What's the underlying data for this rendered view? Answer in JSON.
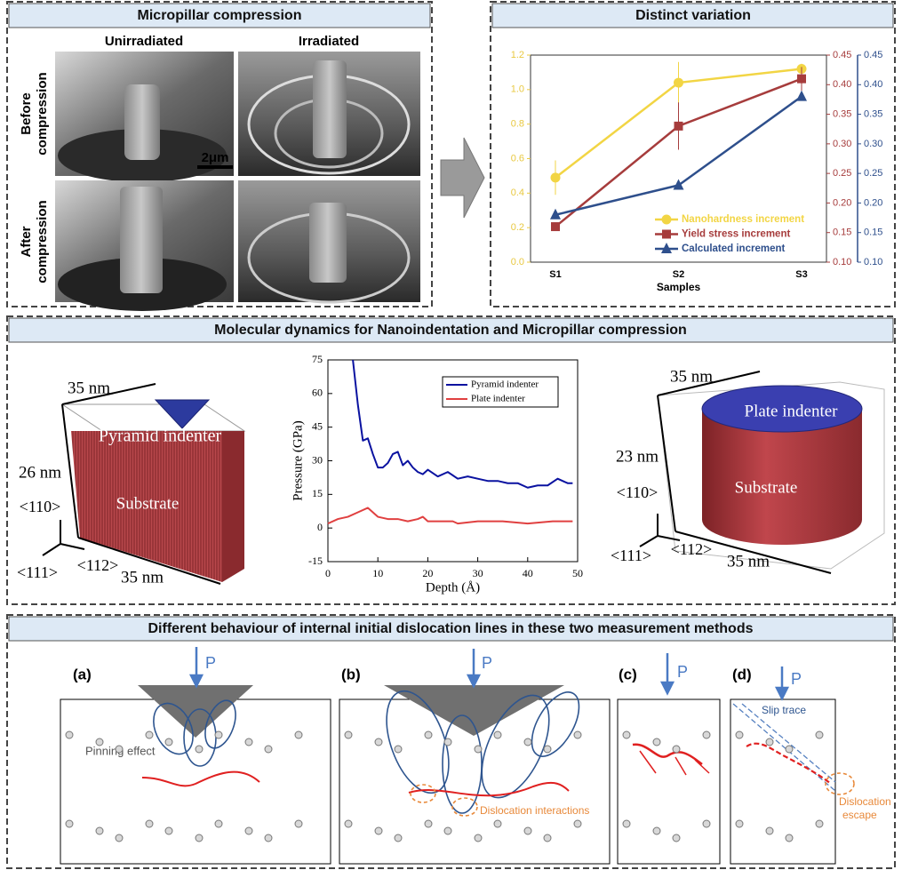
{
  "panels": {
    "micropillar": {
      "title": "Micropillar compression",
      "columns": [
        "Unirradiated",
        "Irradiated"
      ],
      "rows": [
        [
          "Before",
          "compression"
        ],
        [
          "After",
          "compression"
        ]
      ],
      "scale_bar": "2μm"
    },
    "variation": {
      "title": "Distinct variation"
    },
    "md": {
      "title": "Molecular dynamics for Nanoindentation and Micropillar compression",
      "nanoindentation": {
        "width_top": "35 nm",
        "indenter": "Pyramid indenter",
        "height": "26 nm",
        "dir_110": "<110>",
        "substrate": "Substrate",
        "dir_111": "<111>",
        "dir_112": "<112>",
        "width_bottom": "35 nm"
      },
      "pillar": {
        "width_top": "35 nm",
        "indenter": "Plate indenter",
        "height": "23 nm",
        "dir_110": "<110>",
        "substrate": "Substrate",
        "dir_111": "<111>",
        "dir_112": "<112>",
        "width_bottom": "35 nm"
      }
    },
    "dislocation": {
      "title": "Different behaviour of internal initial dislocation lines in these two measurement methods",
      "subpanels": [
        {
          "label": "(a)",
          "load": "P",
          "note": "Pinning effect"
        },
        {
          "label": "(b)",
          "load": "P",
          "note": "Dislocation interactions"
        },
        {
          "label": "(c)",
          "load": "P"
        },
        {
          "label": "(d)",
          "load": "P",
          "notes": [
            "Slip trace",
            "Dislocation",
            "escape"
          ]
        }
      ]
    }
  },
  "chart_data": [
    {
      "type": "line",
      "xlabel": "Samples",
      "categories": [
        "S1",
        "S2",
        "S3"
      ],
      "ylim": [
        0,
        1.2
      ],
      "yticks": [
        {
          "value": 0,
          "label": "0.0"
        },
        0.2,
        0.4,
        0.6,
        0.8,
        {
          "value": 1,
          "label": "1.0"
        },
        1.2
      ],
      "y2lim": [
        0.1,
        0.45
      ],
      "y2ticks": [
        {
          "value": 0.1,
          "label": "0.10"
        },
        0.15,
        {
          "value": 0.2,
          "label": "0.20"
        },
        0.25,
        {
          "value": 0.3,
          "label": "0.30"
        },
        0.35,
        {
          "value": 0.4,
          "label": "0.40"
        },
        0.45
      ],
      "y3lim": [
        0.1,
        0.45
      ],
      "y3ticks": [
        {
          "value": 0.1,
          "label": "0.10"
        },
        0.15,
        {
          "value": 0.2,
          "label": "0.20"
        },
        0.25,
        {
          "value": 0.3,
          "label": "0.30"
        },
        0.35,
        {
          "value": 0.4,
          "label": "0.40"
        },
        0.45
      ],
      "legend": "lower right",
      "series": [
        {
          "name": "Nanohardness increment",
          "color": "#f2d544",
          "marker": "circle",
          "values": [
            0.49,
            1.04,
            1.12
          ],
          "errors": [
            0.1,
            0.12,
            0.03
          ]
        },
        {
          "name": "Yield stress increment",
          "color": "#a63c3c",
          "marker": "square",
          "axis": "y2",
          "values": [
            0.16,
            0.33,
            0.41
          ],
          "errors": [
            0,
            0.04,
            0.02
          ]
        },
        {
          "name": "Calculated  increment",
          "color": "#2e4f8c",
          "marker": "triangle",
          "axis": "y3",
          "values": [
            0.18,
            0.23,
            0.38
          ]
        }
      ]
    },
    {
      "type": "line",
      "xlabel": "Depth (Å)",
      "ylabel": "Pressure (GPa)",
      "xlim": [
        0,
        50
      ],
      "xticks": [
        0,
        10,
        20,
        30,
        40,
        50
      ],
      "ylim": [
        -15,
        75
      ],
      "yticks": [
        -15,
        0,
        15,
        30,
        45,
        60,
        75
      ],
      "legend": "upper right",
      "series": [
        {
          "name": "Pyramid indenter",
          "color": "#0a12a0",
          "x": [
            5,
            6,
            7,
            8,
            9,
            10,
            11,
            12,
            13,
            14,
            15,
            16,
            17,
            18,
            19,
            20,
            22,
            24,
            26,
            28,
            30,
            32,
            34,
            36,
            38,
            40,
            42,
            44,
            46,
            48,
            49
          ],
          "values": [
            75,
            55,
            39,
            40,
            33,
            27,
            27,
            29,
            33,
            34,
            28,
            30,
            27,
            25,
            24,
            26,
            23,
            25,
            22,
            23,
            22,
            21,
            21,
            20,
            20,
            18,
            19,
            19,
            22,
            20,
            20
          ]
        },
        {
          "name": "Plate indenter",
          "color": "#e04040",
          "x": [
            0,
            2,
            4,
            6,
            8,
            10,
            12,
            14,
            16,
            18,
            19,
            20,
            25,
            26,
            30,
            35,
            40,
            45,
            49
          ],
          "values": [
            2,
            4,
            5,
            7,
            9,
            5,
            4,
            4,
            3,
            4,
            5,
            3,
            3,
            2,
            3,
            3,
            2,
            3,
            3
          ]
        }
      ]
    }
  ]
}
